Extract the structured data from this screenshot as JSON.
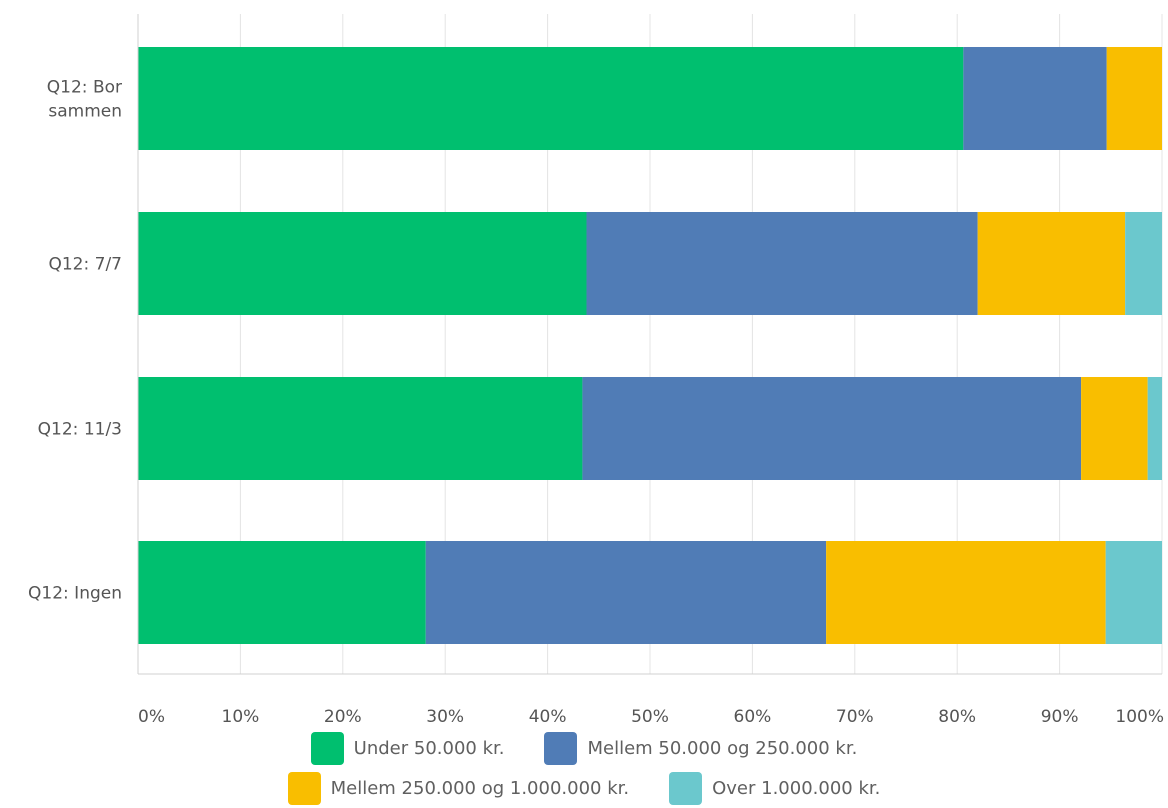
{
  "chart_data": {
    "type": "bar",
    "orientation": "horizontal",
    "stacked": true,
    "categories": [
      "Q12: Bor sammen",
      "Q12: 7/7",
      "Q12: 11/3",
      "Q12: Ingen"
    ],
    "category_lines": [
      [
        "Q12: Bor",
        "sammen"
      ],
      [
        "Q12: 7/7"
      ],
      [
        "Q12: 11/3"
      ],
      [
        "Q12: Ingen"
      ]
    ],
    "series": [
      {
        "name": "Under 50.000 kr.",
        "color": "#00bf6f",
        "values": [
          80.6,
          43.8,
          43.4,
          28.1
        ]
      },
      {
        "name": "Mellem 50.000 og 250.000 kr.",
        "color": "#507cb6",
        "values": [
          14.0,
          38.2,
          48.7,
          39.1
        ]
      },
      {
        "name": "Mellem 250.000 og 1.000.000 kr.",
        "color": "#f9be00",
        "values": [
          5.4,
          14.4,
          6.5,
          27.3
        ]
      },
      {
        "name": "Over 1.000.000 kr.",
        "color": "#6bc8cd",
        "values": [
          0.0,
          3.6,
          1.4,
          5.5
        ]
      }
    ],
    "xlim": [
      0,
      100
    ],
    "x_ticks": [
      "0%",
      "10%",
      "20%",
      "30%",
      "40%",
      "50%",
      "60%",
      "70%",
      "80%",
      "90%",
      "100%"
    ],
    "grid": true,
    "legend_position": "bottom"
  }
}
